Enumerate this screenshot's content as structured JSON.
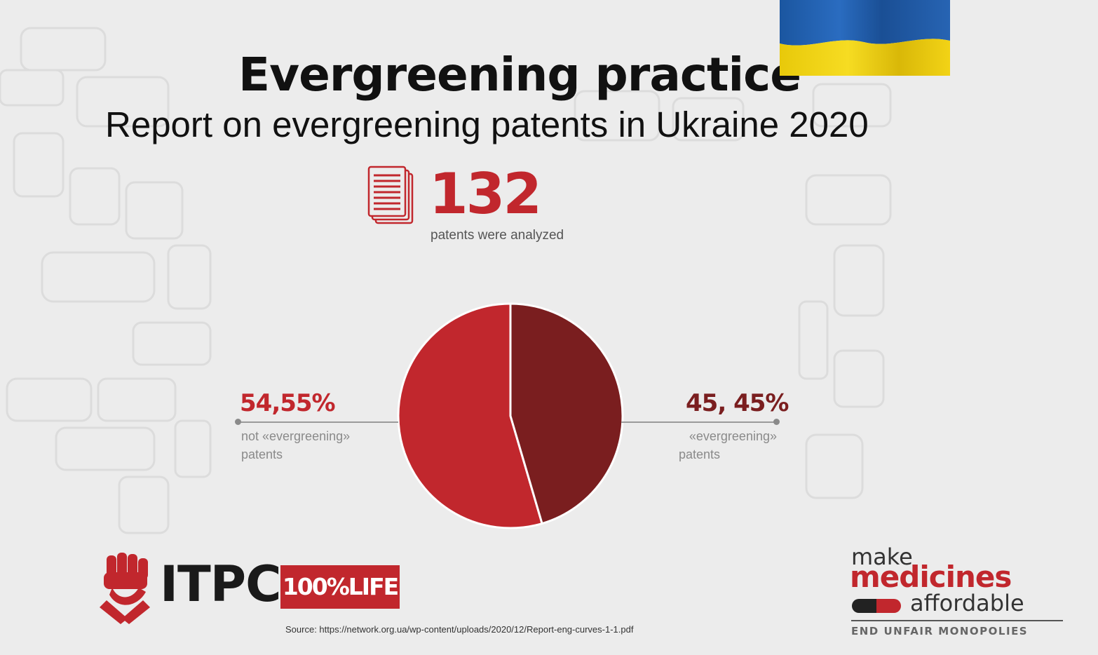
{
  "header": {
    "title": "Evergreening practice",
    "subtitle": "Report on evergreening patents in Ukraine 2020"
  },
  "flag": {
    "name": "ukraine-flag",
    "top_color": "#1f5fb0",
    "bottom_color": "#f0d00c"
  },
  "stat": {
    "icon": "document-stack-icon",
    "value": "132",
    "caption": "patents were analyzed"
  },
  "chart_data": {
    "type": "pie",
    "slices": [
      {
        "label_line1": "not «evergreening»",
        "label_line2": "patents",
        "value": 54.55,
        "display": "54,55%",
        "color": "#c1272d"
      },
      {
        "label_line1": "«evergreening»",
        "label_line2": "patents",
        "value": 45.45,
        "display": "45, 45%",
        "color": "#7a1e1f"
      }
    ],
    "legend": "none",
    "grid": false
  },
  "logos": {
    "itpc": "ITPC",
    "life": "100%LIFE",
    "mm_make": "make",
    "mm_medicines": "medicines",
    "mm_affordable": "affordable",
    "mm_tagline": "END UNFAIR MONOPOLIES"
  },
  "source": "Source: https://network.org.ua/wp-content/uploads/2020/12/Report-eng-curves-1-1.pdf",
  "colors": {
    "accent": "#c1272d",
    "dark_accent": "#7a1e1f",
    "background": "#ececec"
  }
}
